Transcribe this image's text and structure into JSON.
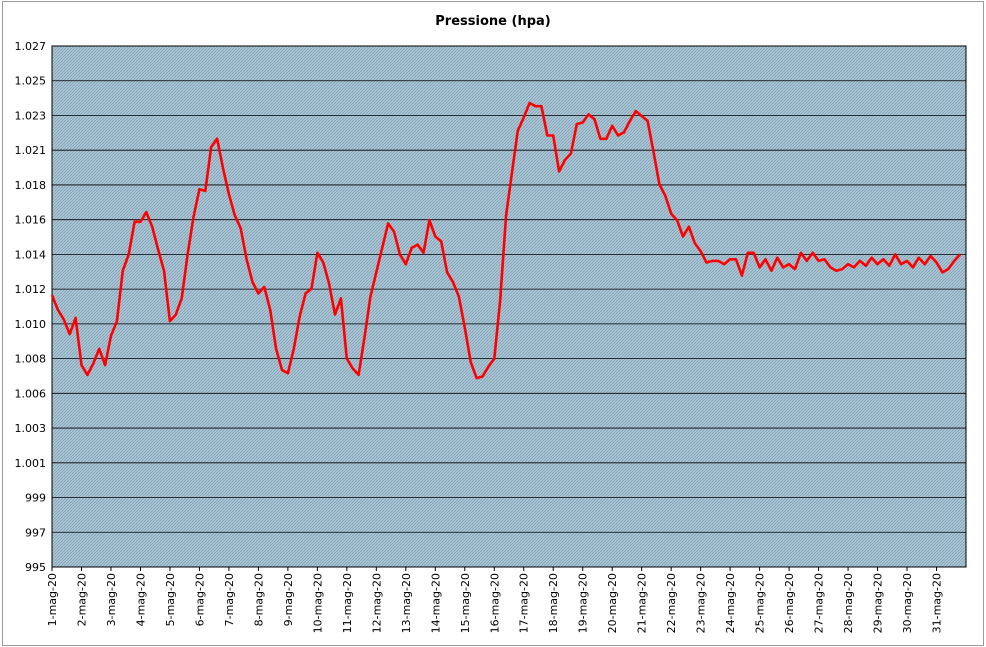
{
  "chart_data": {
    "type": "line",
    "title": "Pressione (hpa)",
    "xlabel": "",
    "ylabel": "",
    "ylim": [
      995,
      1027
    ],
    "grid": true,
    "y_tick_labels": [
      "995",
      "997",
      "999",
      "1.001",
      "1.003",
      "1.006",
      "1.008",
      "1.010",
      "1.012",
      "1.014",
      "1.016",
      "1.018",
      "1.021",
      "1.023",
      "1.025",
      "1.027"
    ],
    "categories": [
      "1-mag-20",
      "2-mag-20",
      "3-mag-20",
      "4-mag-20",
      "5-mag-20",
      "6-mag-20",
      "7-mag-20",
      "8-mag-20",
      "9-mag-20",
      "10-mag-20",
      "11-mag-20",
      "12-mag-20",
      "13-mag-20",
      "14-mag-20",
      "15-mag-20",
      "16-mag-20",
      "17-mag-20",
      "18-mag-20",
      "19-mag-20",
      "20-mag-20",
      "21-mag-20",
      "22-mag-20",
      "23-mag-20",
      "24-mag-20",
      "25-mag-20",
      "26-mag-20",
      "27-mag-20",
      "28-mag-20",
      "29-mag-20",
      "30-mag-20",
      "31-mag-20"
    ],
    "series": [
      {
        "color": "#ff0000",
        "points": [
          [
            0.0,
            1011.7
          ],
          [
            0.2,
            1010.8
          ],
          [
            0.4,
            1010.2
          ],
          [
            0.6,
            1009.3
          ],
          [
            0.8,
            1010.3
          ],
          [
            1.0,
            1007.4
          ],
          [
            1.2,
            1006.8
          ],
          [
            1.4,
            1007.5
          ],
          [
            1.6,
            1008.4
          ],
          [
            1.8,
            1007.4
          ],
          [
            2.0,
            1009.2
          ],
          [
            2.2,
            1010.1
          ],
          [
            2.4,
            1013.2
          ],
          [
            2.6,
            1014.2
          ],
          [
            2.8,
            1016.2
          ],
          [
            3.0,
            1016.2
          ],
          [
            3.2,
            1016.8
          ],
          [
            3.4,
            1015.9
          ],
          [
            3.6,
            1014.5
          ],
          [
            3.8,
            1013.2
          ],
          [
            4.0,
            1010.1
          ],
          [
            4.2,
            1010.5
          ],
          [
            4.4,
            1011.5
          ],
          [
            4.6,
            1014.2
          ],
          [
            4.8,
            1016.5
          ],
          [
            5.0,
            1018.2
          ],
          [
            5.2,
            1018.1
          ],
          [
            5.4,
            1020.8
          ],
          [
            5.6,
            1021.3
          ],
          [
            5.8,
            1019.5
          ],
          [
            6.0,
            1017.9
          ],
          [
            6.2,
            1016.6
          ],
          [
            6.4,
            1015.8
          ],
          [
            6.6,
            1013.9
          ],
          [
            6.8,
            1012.5
          ],
          [
            7.0,
            1011.8
          ],
          [
            7.2,
            1012.2
          ],
          [
            7.4,
            1010.8
          ],
          [
            7.6,
            1008.4
          ],
          [
            7.8,
            1007.1
          ],
          [
            8.0,
            1006.9
          ],
          [
            8.2,
            1008.4
          ],
          [
            8.4,
            1010.4
          ],
          [
            8.6,
            1011.8
          ],
          [
            8.8,
            1012.1
          ],
          [
            9.0,
            1014.3
          ],
          [
            9.2,
            1013.7
          ],
          [
            9.4,
            1012.4
          ],
          [
            9.6,
            1010.5
          ],
          [
            9.8,
            1011.5
          ],
          [
            10.0,
            1007.8
          ],
          [
            10.2,
            1007.2
          ],
          [
            10.4,
            1006.8
          ],
          [
            10.6,
            1009.1
          ],
          [
            10.8,
            1011.6
          ],
          [
            11.0,
            1013.1
          ],
          [
            11.2,
            1014.6
          ],
          [
            11.4,
            1016.1
          ],
          [
            11.6,
            1015.6
          ],
          [
            11.8,
            1014.2
          ],
          [
            12.0,
            1013.6
          ],
          [
            12.2,
            1014.6
          ],
          [
            12.4,
            1014.8
          ],
          [
            12.6,
            1014.3
          ],
          [
            12.8,
            1016.3
          ],
          [
            13.0,
            1015.3
          ],
          [
            13.2,
            1015.0
          ],
          [
            13.4,
            1013.1
          ],
          [
            13.6,
            1012.5
          ],
          [
            13.8,
            1011.6
          ],
          [
            14.0,
            1009.7
          ],
          [
            14.2,
            1007.6
          ],
          [
            14.4,
            1006.6
          ],
          [
            14.6,
            1006.7
          ],
          [
            14.8,
            1007.3
          ],
          [
            15.0,
            1007.8
          ],
          [
            15.2,
            1011.4
          ],
          [
            15.4,
            1016.6
          ],
          [
            15.6,
            1019.2
          ],
          [
            15.8,
            1021.8
          ],
          [
            16.0,
            1022.6
          ],
          [
            16.2,
            1023.5
          ],
          [
            16.4,
            1023.3
          ],
          [
            16.6,
            1023.3
          ],
          [
            16.8,
            1021.5
          ],
          [
            17.0,
            1021.5
          ],
          [
            17.2,
            1019.3
          ],
          [
            17.4,
            1020.0
          ],
          [
            17.6,
            1020.4
          ],
          [
            17.8,
            1022.2
          ],
          [
            18.0,
            1022.3
          ],
          [
            18.2,
            1022.8
          ],
          [
            18.4,
            1022.5
          ],
          [
            18.6,
            1021.3
          ],
          [
            18.8,
            1021.3
          ],
          [
            19.0,
            1022.1
          ],
          [
            19.2,
            1021.5
          ],
          [
            19.4,
            1021.7
          ],
          [
            19.6,
            1022.4
          ],
          [
            19.8,
            1023.0
          ],
          [
            20.0,
            1022.7
          ],
          [
            20.2,
            1022.4
          ],
          [
            20.4,
            1020.5
          ],
          [
            20.6,
            1018.5
          ],
          [
            20.8,
            1017.8
          ],
          [
            21.0,
            1016.7
          ],
          [
            21.2,
            1016.3
          ],
          [
            21.4,
            1015.3
          ],
          [
            21.6,
            1015.9
          ],
          [
            21.8,
            1014.9
          ],
          [
            22.0,
            1014.4
          ],
          [
            22.2,
            1013.7
          ],
          [
            22.4,
            1013.8
          ],
          [
            22.6,
            1013.8
          ],
          [
            22.8,
            1013.6
          ],
          [
            23.0,
            1013.9
          ],
          [
            23.2,
            1013.9
          ],
          [
            23.4,
            1012.9
          ],
          [
            23.6,
            1014.3
          ],
          [
            23.8,
            1014.3
          ],
          [
            24.0,
            1013.4
          ],
          [
            24.2,
            1013.9
          ],
          [
            24.4,
            1013.2
          ],
          [
            24.6,
            1014.0
          ],
          [
            24.8,
            1013.4
          ],
          [
            25.0,
            1013.6
          ],
          [
            25.2,
            1013.3
          ],
          [
            25.4,
            1014.3
          ],
          [
            25.6,
            1013.8
          ],
          [
            25.8,
            1014.3
          ],
          [
            26.0,
            1013.8
          ],
          [
            26.2,
            1013.9
          ],
          [
            26.4,
            1013.4
          ],
          [
            26.6,
            1013.2
          ],
          [
            26.8,
            1013.3
          ],
          [
            27.0,
            1013.6
          ],
          [
            27.2,
            1013.4
          ],
          [
            27.4,
            1013.8
          ],
          [
            27.6,
            1013.5
          ],
          [
            27.8,
            1014.0
          ],
          [
            28.0,
            1013.6
          ],
          [
            28.2,
            1013.9
          ],
          [
            28.4,
            1013.5
          ],
          [
            28.6,
            1014.2
          ],
          [
            28.8,
            1013.6
          ],
          [
            29.0,
            1013.8
          ],
          [
            29.2,
            1013.4
          ],
          [
            29.4,
            1014.0
          ],
          [
            29.6,
            1013.6
          ],
          [
            29.8,
            1014.1
          ],
          [
            30.0,
            1013.7
          ],
          [
            30.2,
            1013.1
          ],
          [
            30.4,
            1013.3
          ],
          [
            30.6,
            1013.8
          ],
          [
            30.8,
            1014.2
          ]
        ]
      }
    ]
  }
}
